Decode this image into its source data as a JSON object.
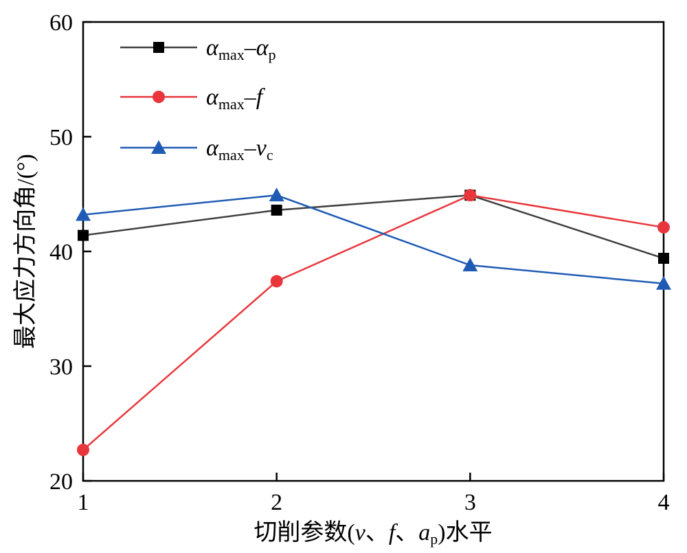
{
  "chart_data": {
    "type": "line",
    "x": [
      1,
      2,
      3,
      4
    ],
    "xlabel": {
      "prefix": "切削参数(",
      "v": "v",
      "sep1": "、",
      "f": "f",
      "sep2": "、",
      "a": "a",
      "a_sub": "p",
      "suffix": ")水平"
    },
    "ylabel": "最大应力方向角/(°)",
    "xlim": [
      1,
      4
    ],
    "ylim": [
      20,
      60
    ],
    "xticks": [
      "1",
      "2",
      "3",
      "4"
    ],
    "yticks": [
      "20",
      "30",
      "40",
      "50",
      "60"
    ],
    "grid": false,
    "legend_position": "top-left",
    "series": [
      {
        "name": "αmax–αp",
        "label_main": "α",
        "label_sub": "max",
        "label_dash": "–",
        "label_var": "α",
        "label_var_sub": "p",
        "color": "#404040",
        "marker": "square",
        "values": [
          41.4,
          43.6,
          44.9,
          39.4
        ]
      },
      {
        "name": "αmax–f",
        "label_main": "α",
        "label_sub": "max",
        "label_dash": "–",
        "label_var": "f",
        "label_var_sub": "",
        "color": "#e8363c",
        "marker": "circle",
        "values": [
          22.7,
          37.4,
          44.9,
          42.1
        ]
      },
      {
        "name": "αmax–vc",
        "label_main": "α",
        "label_sub": "max",
        "label_dash": "–",
        "label_var": "v",
        "label_var_sub": "c",
        "color": "#1f5bb5",
        "marker": "triangle",
        "values": [
          43.2,
          44.9,
          38.8,
          37.2
        ]
      }
    ]
  }
}
